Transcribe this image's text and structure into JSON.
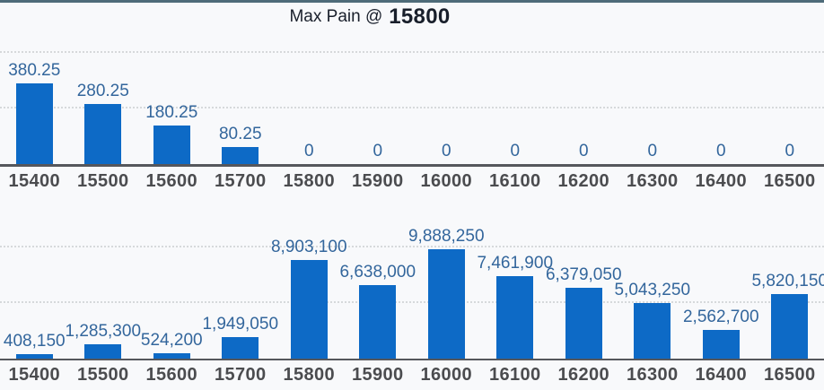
{
  "title": {
    "prefix": "Max Pain @",
    "value": "15800"
  },
  "colors": {
    "background": "#f8f9fb",
    "top_border": "#4e6b79",
    "bar": "#0d6ac6",
    "value_label": "#33669c",
    "axis_line": "#55575c",
    "x_label": "#4b4c4f",
    "gridline": "#d6d9db",
    "title_text": "#191f2b"
  },
  "chart_data": [
    {
      "type": "bar",
      "name": "top-strike-chart",
      "categories": [
        "15400",
        "15500",
        "15600",
        "15700",
        "15800",
        "15900",
        "16000",
        "16100",
        "16200",
        "16300",
        "16400",
        "16500"
      ],
      "values": [
        380.25,
        280.25,
        180.25,
        80.25,
        0,
        0,
        0,
        0,
        0,
        0,
        0,
        0
      ],
      "value_labels": [
        "380.25",
        "280.25",
        "180.25",
        "80.25",
        "0",
        "0",
        "0",
        "0",
        "0",
        "0",
        "0",
        "0"
      ],
      "title": "",
      "xlabel": "",
      "ylabel": "",
      "ylim": [
        0,
        530
      ],
      "grid": true,
      "legend": false
    },
    {
      "type": "bar",
      "name": "bottom-strike-chart",
      "categories": [
        "15400",
        "15500",
        "15600",
        "15700",
        "15800",
        "15900",
        "16000",
        "16100",
        "16200",
        "16300",
        "16400",
        "16500"
      ],
      "values": [
        408150,
        1285300,
        524200,
        1949050,
        8903100,
        6638000,
        9888250,
        7461900,
        6379050,
        5043250,
        2562700,
        5820150
      ],
      "value_labels": [
        "408,150",
        "1,285,300",
        "524,200",
        "1,949,050",
        "8,903,100",
        "6,638,000",
        "9,888,250",
        "7,461,900",
        "6,379,050",
        "5,043,250",
        "2,562,700",
        "5,820,150"
      ],
      "title": "",
      "xlabel": "",
      "ylabel": "",
      "ylim": [
        0,
        10200000
      ],
      "grid": true,
      "legend": false
    }
  ]
}
